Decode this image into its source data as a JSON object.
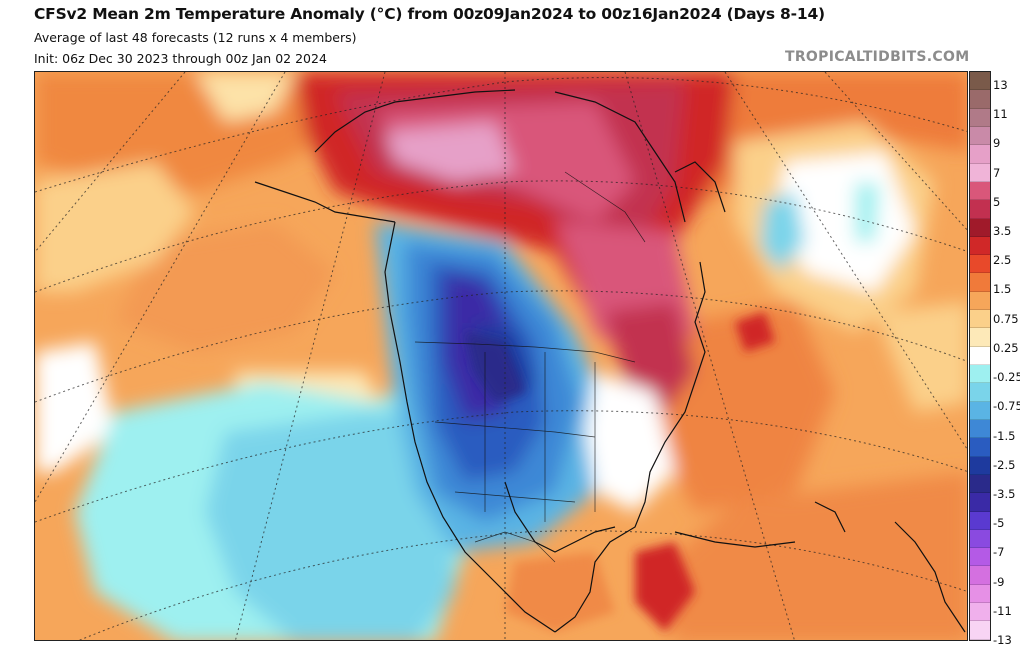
{
  "header": {
    "title": "CFSv2 Mean 2m Temperature Anomaly (°C) from 00z09Jan2024 to 00z16Jan2024 (Days 8-14)",
    "subtitle": "Average of last 48 forecasts (12 runs x 4 members)",
    "init": "Init: 06z Dec 30 2023 through 00z Jan 02 2024"
  },
  "credit": "TROPICALTIDBITS.COM",
  "colorbar": {
    "ticks": [
      "13",
      "11",
      "9",
      "7",
      "5",
      "3.5",
      "2.5",
      "1.5",
      "0.75",
      "0.25",
      "-0.25",
      "-0.75",
      "-1.5",
      "-2.5",
      "-3.5",
      "-5",
      "-7",
      "-9",
      "-11",
      "-13"
    ],
    "colors": [
      "#7a5a4a",
      "#9a6a6a",
      "#b07a88",
      "#c98aa8",
      "#e6a0c8",
      "#f0b4d8",
      "#d9577a",
      "#c23050",
      "#a01a2a",
      "#d02828",
      "#e8492a",
      "#f07a3a",
      "#f6a65a",
      "#fbd08a",
      "#fde9b8",
      "#ffffff",
      "#9ef0f0",
      "#7ad4ea",
      "#5ab4e4",
      "#3e88d6",
      "#2a5cc0",
      "#1e3a9e",
      "#2a2a8a",
      "#3a2aa6",
      "#5a3ad0",
      "#8a4ae0",
      "#b45ae6",
      "#d470e0",
      "#e690e6",
      "#f0b0ec",
      "#f8d4f4"
    ]
  }
}
